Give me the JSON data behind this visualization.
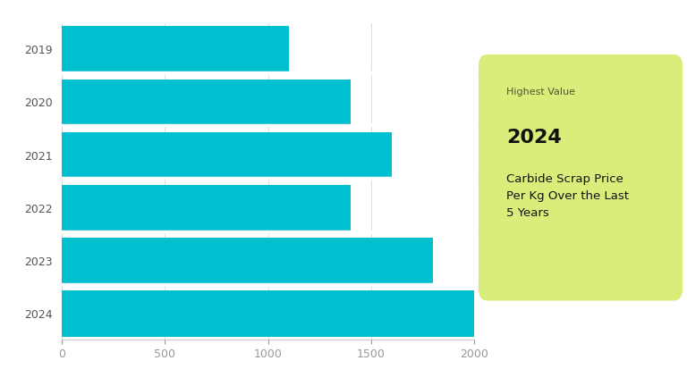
{
  "years": [
    "2019",
    "2020",
    "2021",
    "2022",
    "2023",
    "2024"
  ],
  "values": [
    1100,
    1400,
    1600,
    1400,
    1800,
    2000
  ],
  "bar_color": "#00C0D0",
  "background_color": "#f0f0f0",
  "chart_bg": "#ffffff",
  "outer_bg": "#f5f5f5",
  "xlim": [
    0,
    2000
  ],
  "xticks": [
    0,
    500,
    1000,
    1500,
    2000
  ],
  "annotation_bg": "#d9ed7a",
  "annotation_title": "Highest Value",
  "annotation_year": "2024",
  "annotation_text": "Carbide Scrap Price\nPer Kg Over the Last\n5 Years",
  "annotation_title_fontsize": 8,
  "annotation_year_fontsize": 16,
  "annotation_text_fontsize": 9.5,
  "tick_fontsize": 9,
  "bar_height": 0.88,
  "separator_color": "#ffffff",
  "grid_color": "#e0e0e0",
  "ytick_color": "#555555",
  "xtick_color": "#999999"
}
